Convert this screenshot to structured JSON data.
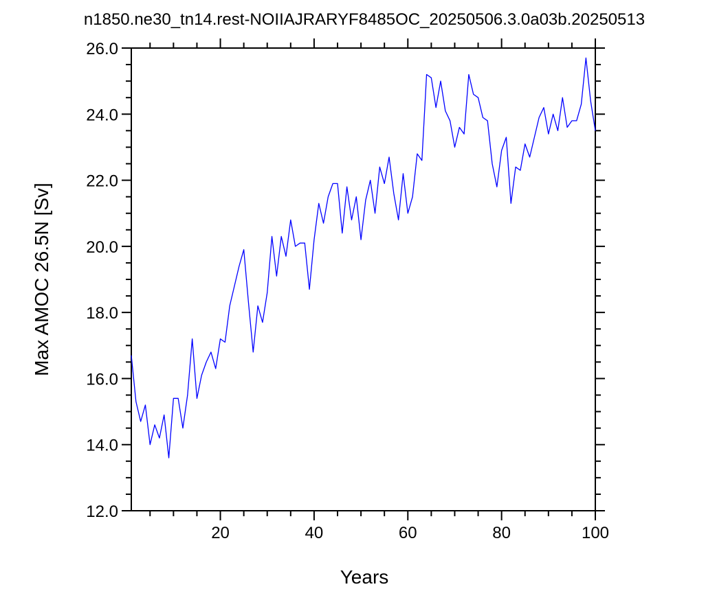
{
  "chart_data": {
    "type": "line",
    "title": "n1850.ne30_tn14.rest-NOIIAJRARYF8485OC_20250506.3.0a03b.20250513",
    "xlabel": "Years",
    "ylabel": "Max AMOC 26.5N [Sv]",
    "xlim": [
      1,
      100
    ],
    "ylim": [
      12.0,
      26.0
    ],
    "x_ticks": [
      20,
      40,
      60,
      80,
      100
    ],
    "y_ticks": [
      12.0,
      14.0,
      16.0,
      18.0,
      20.0,
      22.0,
      24.0,
      26.0
    ],
    "x_tick_labels": [
      "20",
      "40",
      "60",
      "80",
      "100"
    ],
    "y_tick_labels": [
      "12.0",
      "14.0",
      "16.0",
      "18.0",
      "20.0",
      "22.0",
      "24.0",
      "26.0"
    ],
    "grid": false,
    "line_color": "#0000ff",
    "series": [
      {
        "x": [
          1,
          2,
          3,
          4,
          5,
          6,
          7,
          8,
          9,
          10,
          11,
          12,
          13,
          14,
          15,
          16,
          17,
          18,
          19,
          20,
          21,
          22,
          23,
          24,
          25,
          26,
          27,
          28,
          29,
          30,
          31,
          32,
          33,
          34,
          35,
          36,
          37,
          38,
          39,
          40,
          41,
          42,
          43,
          44,
          45,
          46,
          47,
          48,
          49,
          50,
          51,
          52,
          53,
          54,
          55,
          56,
          57,
          58,
          59,
          60,
          61,
          62,
          63,
          64,
          65,
          66,
          67,
          68,
          69,
          70,
          71,
          72,
          73,
          74,
          75,
          76,
          77,
          78,
          79,
          80,
          81,
          82,
          83,
          84,
          85,
          86,
          87,
          88,
          89,
          90,
          91,
          92,
          93,
          94,
          95,
          96,
          97,
          98,
          99,
          100
        ],
        "values": [
          16.7,
          15.3,
          14.7,
          15.2,
          14.0,
          14.6,
          14.2,
          14.9,
          13.6,
          15.4,
          15.4,
          14.5,
          15.5,
          17.2,
          15.4,
          16.1,
          16.5,
          16.8,
          16.3,
          17.2,
          17.1,
          18.2,
          18.8,
          19.4,
          19.9,
          18.3,
          16.8,
          18.2,
          17.7,
          18.6,
          20.3,
          19.1,
          20.3,
          19.7,
          20.8,
          20.0,
          20.1,
          20.1,
          18.7,
          20.2,
          21.3,
          20.7,
          21.5,
          21.9,
          21.9,
          20.4,
          21.8,
          20.8,
          21.5,
          20.2,
          21.4,
          22.0,
          21.0,
          22.4,
          21.9,
          22.7,
          21.6,
          20.8,
          22.2,
          21.0,
          21.5,
          22.8,
          22.6,
          25.2,
          25.1,
          24.2,
          25.0,
          24.1,
          23.8,
          23.0,
          23.6,
          23.4,
          25.2,
          24.6,
          24.5,
          23.9,
          23.8,
          22.5,
          21.8,
          22.9,
          23.3,
          21.3,
          22.4,
          22.3,
          23.1,
          22.7,
          23.3,
          23.9,
          24.2,
          23.4,
          24.0,
          23.5,
          24.5,
          23.6,
          23.8,
          23.8,
          24.3,
          25.7,
          24.4,
          23.5
        ]
      }
    ]
  }
}
